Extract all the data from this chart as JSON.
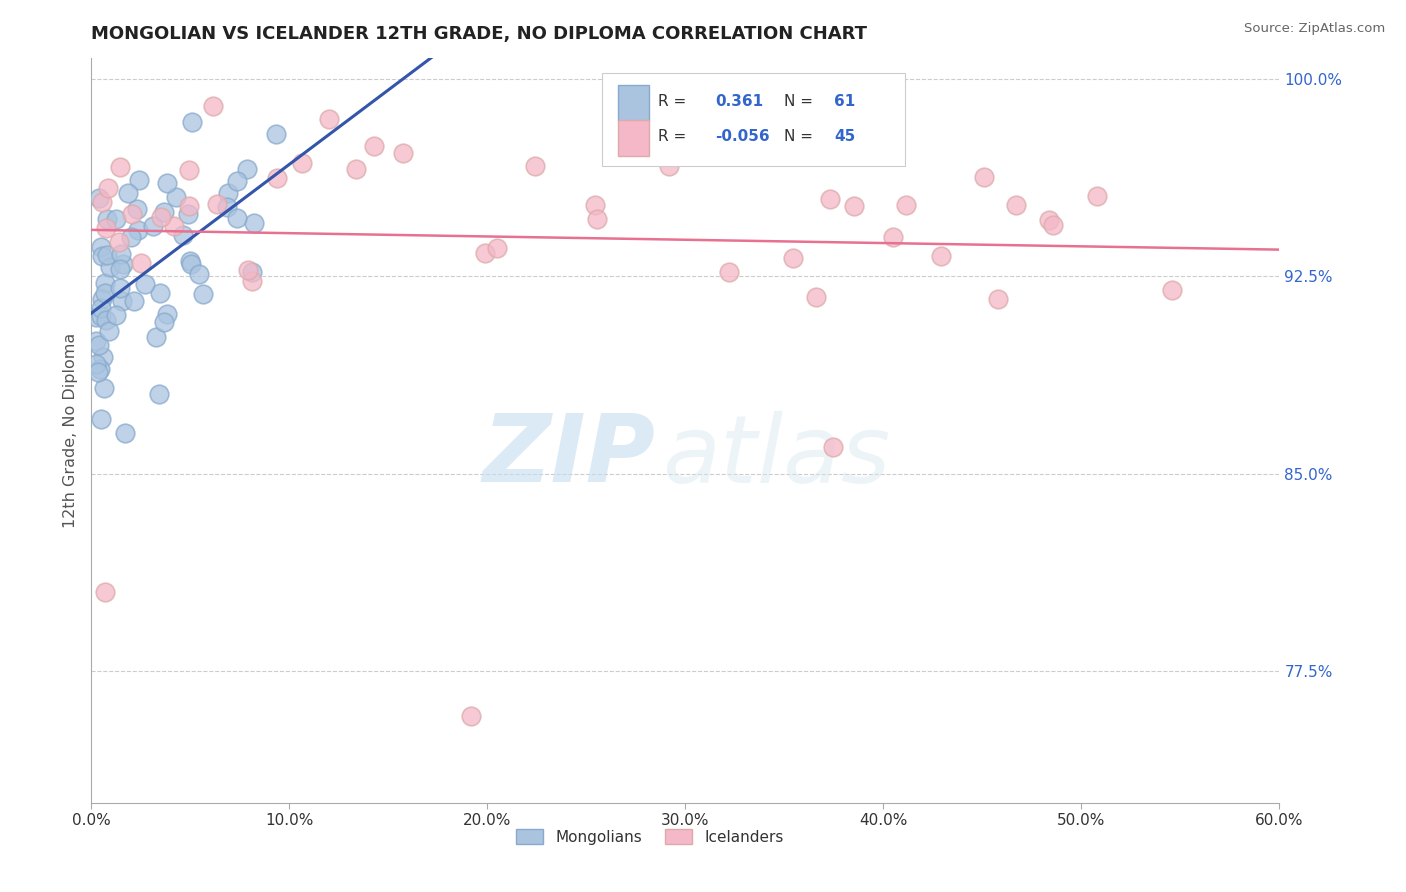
{
  "title": "MONGOLIAN VS ICELANDER 12TH GRADE, NO DIPLOMA CORRELATION CHART",
  "source": "Source: ZipAtlas.com",
  "ylabel_label": "12th Grade, No Diploma",
  "xlim": [
    0.0,
    0.6
  ],
  "ylim": [
    0.725,
    1.008
  ],
  "xtick_vals": [
    0.0,
    0.1,
    0.2,
    0.3,
    0.4,
    0.5,
    0.6
  ],
  "xtick_labels": [
    "0.0%",
    "10.0%",
    "20.0%",
    "30.0%",
    "40.0%",
    "50.0%",
    "60.0%"
  ],
  "ytick_vals": [
    0.775,
    0.85,
    0.925,
    1.0
  ],
  "ytick_labels": [
    "77.5%",
    "85.0%",
    "92.5%",
    "100.0%"
  ],
  "gridcolor": "#cccccc",
  "background_color": "#ffffff",
  "mongolian_color": "#aac4e0",
  "mongolian_edge_color": "#88aacc",
  "icelander_color": "#f4b8c8",
  "icelander_edge_color": "#ddaaaa",
  "mongolian_line_color": "#3355aa",
  "icelander_line_color": "#e87090",
  "R_mongolian": 0.361,
  "N_mongolian": 61,
  "R_icelander": -0.056,
  "N_icelander": 45,
  "watermark_zip": "ZIP",
  "watermark_atlas": "atlas",
  "legend_R_color": "#3366cc",
  "legend_text_color": "#333333",
  "ytick_color": "#3366cc",
  "title_color": "#222222",
  "source_color": "#666666",
  "ylabel_color": "#555555"
}
